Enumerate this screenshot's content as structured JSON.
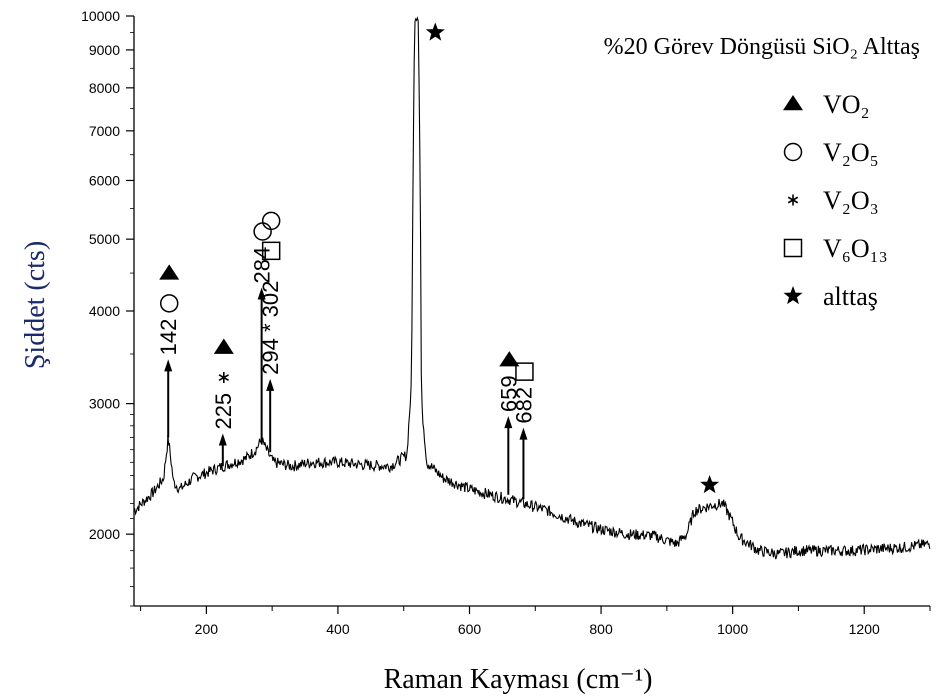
{
  "chart_data": {
    "type": "line",
    "title": "%20 Görev Döngüsü SiO₂ Alttaş",
    "xlabel": "Raman Kayması (cm⁻¹)",
    "ylabel": "Şiddet (cts)",
    "xlim": [
      90,
      1300
    ],
    "ylim": [
      1600,
      10000
    ],
    "y_scale": "log",
    "grid": false,
    "legend_position": "right",
    "x_ticks": [
      200,
      400,
      600,
      800,
      1000,
      1200
    ],
    "y_ticks": [
      2000,
      3000,
      4000,
      5000,
      6000,
      7000,
      8000,
      9000,
      10000
    ],
    "series": [
      {
        "color": "#000000",
        "points": [
          [
            90,
            2150
          ],
          [
            120,
            2280
          ],
          [
            135,
            2380
          ],
          [
            142,
            2700
          ],
          [
            150,
            2350
          ],
          [
            160,
            2300
          ],
          [
            180,
            2380
          ],
          [
            200,
            2420
          ],
          [
            225,
            2470
          ],
          [
            260,
            2530
          ],
          [
            275,
            2600
          ],
          [
            284,
            2680
          ],
          [
            295,
            2560
          ],
          [
            302,
            2500
          ],
          [
            330,
            2470
          ],
          [
            360,
            2500
          ],
          [
            400,
            2500
          ],
          [
            440,
            2480
          ],
          [
            480,
            2470
          ],
          [
            505,
            2560
          ],
          [
            512,
            3200
          ],
          [
            517,
            10000
          ],
          [
            522,
            10000
          ],
          [
            527,
            3000
          ],
          [
            535,
            2500
          ],
          [
            560,
            2380
          ],
          [
            600,
            2300
          ],
          [
            640,
            2250
          ],
          [
            659,
            2230
          ],
          [
            682,
            2200
          ],
          [
            720,
            2150
          ],
          [
            760,
            2080
          ],
          [
            800,
            2030
          ],
          [
            840,
            2000
          ],
          [
            880,
            1990
          ],
          [
            915,
            1940
          ],
          [
            930,
            2000
          ],
          [
            942,
            2150
          ],
          [
            955,
            2170
          ],
          [
            970,
            2190
          ],
          [
            985,
            2200
          ],
          [
            995,
            2120
          ],
          [
            1010,
            1980
          ],
          [
            1040,
            1900
          ],
          [
            1070,
            1880
          ],
          [
            1100,
            1900
          ],
          [
            1140,
            1900
          ],
          [
            1180,
            1900
          ],
          [
            1220,
            1910
          ],
          [
            1260,
            1920
          ],
          [
            1300,
            1940
          ]
        ]
      }
    ],
    "legend": [
      {
        "symbol": "filled-triangle",
        "label": "VO₂"
      },
      {
        "symbol": "open-circle",
        "label": "V₂O₅"
      },
      {
        "symbol": "asterisk",
        "label": "V₂O₃"
      },
      {
        "symbol": "open-square",
        "label": "V₆O₁₃"
      },
      {
        "symbol": "filled-star",
        "label": "alttaş"
      }
    ],
    "peaks": [
      {
        "label": "142",
        "x": 142,
        "arrow_from": 2700,
        "arrow_to": 3400,
        "symbols": [
          "open-circle",
          "filled-triangle"
        ]
      },
      {
        "label": "225",
        "x": 225,
        "arrow_from": 2470,
        "arrow_to": 2700,
        "symbols": [
          "asterisk",
          "filled-triangle"
        ]
      },
      {
        "label": "284",
        "x": 284,
        "arrow_from": 2650,
        "arrow_to": 4250,
        "symbols": [
          "open-circle"
        ]
      },
      {
        "label": "294 * 302",
        "x": 297,
        "arrow_from": 2580,
        "arrow_to": 3200,
        "symbols": [
          "open-square",
          "open-circle"
        ]
      },
      {
        "label": "659",
        "x": 659,
        "arrow_from": 2260,
        "arrow_to": 2850,
        "symbols": [
          "filled-triangle"
        ]
      },
      {
        "label": "682",
        "x": 682,
        "arrow_from": 2230,
        "arrow_to": 2750,
        "symbols": [
          "open-square"
        ]
      }
    ],
    "annotations": [
      {
        "symbol": "filled-star",
        "x": 548,
        "y": 9500
      },
      {
        "symbol": "filled-star",
        "x": 965,
        "y": 2330
      }
    ]
  }
}
